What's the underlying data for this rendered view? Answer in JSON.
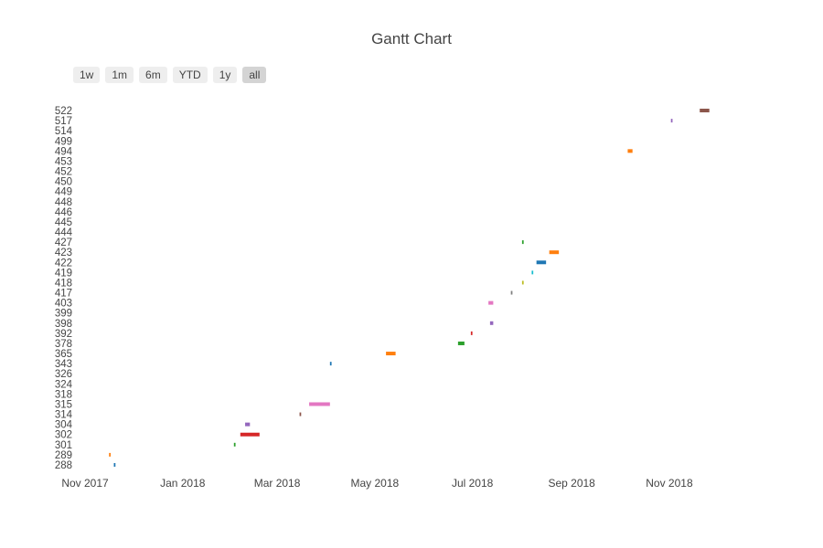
{
  "range_selector": {
    "buttons": [
      {
        "label": "1w",
        "active": false
      },
      {
        "label": "1m",
        "active": false
      },
      {
        "label": "6m",
        "active": false
      },
      {
        "label": "YTD",
        "active": false
      },
      {
        "label": "1y",
        "active": false
      },
      {
        "label": "all",
        "active": true
      }
    ]
  },
  "chart_data": {
    "type": "gantt",
    "title": "Gantt Chart",
    "xlabel": "",
    "ylabel": "",
    "x_axis": {
      "type": "date",
      "range": [
        "2017-11-01",
        "2019-02-01"
      ],
      "ticks": [
        {
          "date": "2017-11-01",
          "label": "Nov 2017"
        },
        {
          "date": "2018-01-01",
          "label": "Jan 2018"
        },
        {
          "date": "2018-03-01",
          "label": "Mar 2018"
        },
        {
          "date": "2018-05-01",
          "label": "May 2018"
        },
        {
          "date": "2018-07-01",
          "label": "Jul 2018"
        },
        {
          "date": "2018-09-01",
          "label": "Sep 2018"
        },
        {
          "date": "2018-11-01",
          "label": "Nov 2018"
        }
      ]
    },
    "categories": [
      "288",
      "289",
      "301",
      "302",
      "304",
      "314",
      "315",
      "318",
      "324",
      "326",
      "343",
      "365",
      "378",
      "392",
      "398",
      "399",
      "403",
      "417",
      "418",
      "419",
      "422",
      "423",
      "427",
      "444",
      "445",
      "446",
      "448",
      "449",
      "450",
      "452",
      "453",
      "494",
      "499",
      "514",
      "517",
      "522"
    ],
    "tasks": [
      {
        "category": "288",
        "start": "2017-11-19",
        "finish": "2017-11-20",
        "color": "#1f77b4"
      },
      {
        "category": "289",
        "start": "2017-11-16",
        "finish": "2017-11-17",
        "color": "#ff7f0e"
      },
      {
        "category": "301",
        "start": "2018-02-02",
        "finish": "2018-02-03",
        "color": "#2ca02c"
      },
      {
        "category": "302",
        "start": "2018-02-06",
        "finish": "2018-02-18",
        "color": "#d62728"
      },
      {
        "category": "304",
        "start": "2018-02-09",
        "finish": "2018-02-12",
        "color": "#9467bd"
      },
      {
        "category": "314",
        "start": "2018-03-15",
        "finish": "2018-03-16",
        "color": "#8c564b"
      },
      {
        "category": "315",
        "start": "2018-03-21",
        "finish": "2018-04-03",
        "color": "#e377c2"
      },
      {
        "category": "343",
        "start": "2018-04-03",
        "finish": "2018-04-04",
        "color": "#1f77b4"
      },
      {
        "category": "365",
        "start": "2018-05-08",
        "finish": "2018-05-14",
        "color": "#ff7f0e"
      },
      {
        "category": "378",
        "start": "2018-06-22",
        "finish": "2018-06-26",
        "color": "#2ca02c"
      },
      {
        "category": "392",
        "start": "2018-06-30",
        "finish": "2018-07-01",
        "color": "#d62728"
      },
      {
        "category": "398",
        "start": "2018-07-12",
        "finish": "2018-07-14",
        "color": "#9467bd"
      },
      {
        "category": "403",
        "start": "2018-07-11",
        "finish": "2018-07-14",
        "color": "#e377c2"
      },
      {
        "category": "417",
        "start": "2018-07-25",
        "finish": "2018-07-26",
        "color": "#7f7f7f"
      },
      {
        "category": "418",
        "start": "2018-08-01",
        "finish": "2018-08-02",
        "color": "#bcbd22"
      },
      {
        "category": "419",
        "start": "2018-08-07",
        "finish": "2018-08-08",
        "color": "#17becf"
      },
      {
        "category": "422",
        "start": "2018-08-10",
        "finish": "2018-08-16",
        "color": "#1f77b4"
      },
      {
        "category": "423",
        "start": "2018-08-18",
        "finish": "2018-08-24",
        "color": "#ff7f0e"
      },
      {
        "category": "427",
        "start": "2018-08-01",
        "finish": "2018-08-02",
        "color": "#2ca02c"
      },
      {
        "category": "494",
        "start": "2018-10-06",
        "finish": "2018-10-09",
        "color": "#ff7f0e"
      },
      {
        "category": "517",
        "start": "2018-11-02",
        "finish": "2018-11-03",
        "color": "#9467bd"
      },
      {
        "category": "522",
        "start": "2018-11-20",
        "finish": "2018-11-26",
        "color": "#8c564b"
      }
    ],
    "grid": false,
    "legend": "none"
  }
}
